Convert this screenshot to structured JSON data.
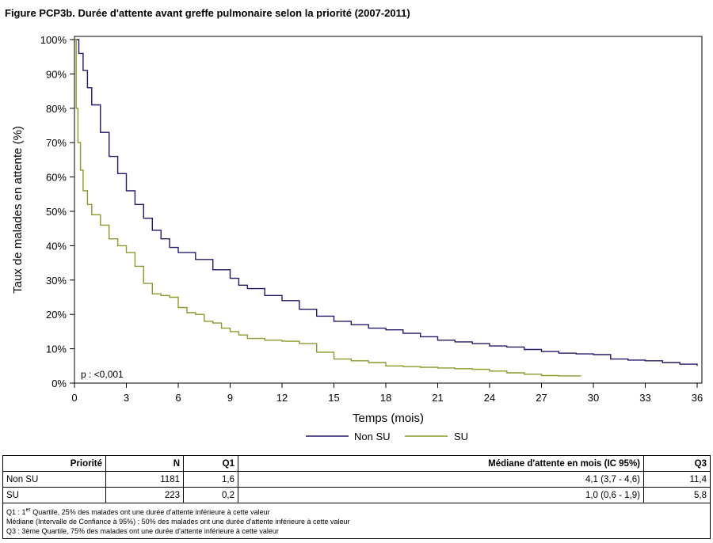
{
  "title": "Figure PCP3b. Durée d'attente avant greffe pulmonaire selon la priorité (2007-2011)",
  "chart_data": {
    "type": "line",
    "xlabel": "Temps (mois)",
    "ylabel": "Taux de malades en attente (%)",
    "xlim": [
      0,
      36
    ],
    "ylim": [
      0,
      100
    ],
    "x_ticks": [
      "0",
      "3",
      "6",
      "9",
      "12",
      "15",
      "18",
      "21",
      "24",
      "27",
      "30",
      "33",
      "36"
    ],
    "y_ticks": [
      "0%",
      "10%",
      "20%",
      "30%",
      "40%",
      "50%",
      "60%",
      "70%",
      "80%",
      "90%",
      "100%"
    ],
    "annotation": "p : <0,001",
    "legend_position": "bottom",
    "grid": false,
    "series": [
      {
        "name": "Non SU",
        "color": "#1f1a6b",
        "x": [
          0,
          0.25,
          0.5,
          0.75,
          1,
          1.5,
          2,
          2.5,
          3,
          3.5,
          4,
          4.5,
          5,
          5.5,
          6,
          7,
          8,
          9,
          9.5,
          10,
          11,
          12,
          13,
          14,
          15,
          16,
          17,
          18,
          19,
          20,
          21,
          22,
          23,
          24,
          25,
          26,
          27,
          28,
          29,
          30,
          31,
          32,
          33,
          34,
          35,
          36
        ],
        "y": [
          100,
          96,
          91,
          86,
          81,
          73,
          66,
          61,
          56,
          52,
          48,
          44.5,
          42,
          39.5,
          38,
          36,
          33,
          30.5,
          28.5,
          27.5,
          25.5,
          24,
          21.5,
          19.5,
          18,
          17,
          16,
          15.5,
          14.5,
          13.5,
          12.5,
          12,
          11.5,
          10.8,
          10.5,
          9.8,
          9.2,
          8.7,
          8.5,
          8.3,
          7,
          6.7,
          6.5,
          6,
          5.5,
          5
        ]
      },
      {
        "name": "SU",
        "color": "#8a9a2b",
        "x": [
          0,
          0.1,
          0.2,
          0.35,
          0.5,
          0.75,
          1,
          1.5,
          2,
          2.5,
          3,
          3.5,
          4,
          4.5,
          5,
          5.5,
          6,
          6.5,
          7,
          7.5,
          8,
          8.5,
          9,
          9.5,
          10,
          11,
          12,
          13,
          14,
          15,
          16,
          17,
          18,
          19,
          20,
          21,
          22,
          23,
          24,
          25,
          26,
          27,
          28,
          29.3
        ],
        "y": [
          100,
          80,
          70,
          62,
          56,
          52,
          49,
          46,
          42,
          40,
          38,
          34,
          29,
          26,
          25.5,
          25,
          22,
          20.5,
          20,
          18,
          17.5,
          16,
          15,
          14,
          13,
          12.5,
          12.2,
          11.5,
          9,
          7,
          6.5,
          6,
          5,
          4.8,
          4.6,
          4.4,
          4.2,
          4,
          3.5,
          3,
          2.6,
          2.2,
          2.1,
          2.1
        ]
      }
    ]
  },
  "table": {
    "headers": [
      "Priorité",
      "N",
      "Q1",
      "Médiane d'attente en mois (IC 95%)",
      "Q3"
    ],
    "rows": [
      [
        "Non SU",
        "1181",
        "1,6",
        "4,1 (3,7 - 4,6)",
        "11,4"
      ],
      [
        "SU",
        "223",
        "0,2",
        "1,0 (0,6 - 1,9)",
        "5,8"
      ]
    ],
    "notes": {
      "q1_prefix": "Q1 : 1",
      "q1_sup": "er",
      "q1_rest": " Quartile, 25% des malades ont une durée d'attente inférieure à cette valeur",
      "median": "Médiane (Intervalle de Confiance à 95%) : 50% des malades ont une durée d'attente inférieure à cette valeur",
      "q3": "Q3 : 3ème Quartile, 75% des malades ont une durée d'attente inférieure à cette valeur"
    }
  }
}
